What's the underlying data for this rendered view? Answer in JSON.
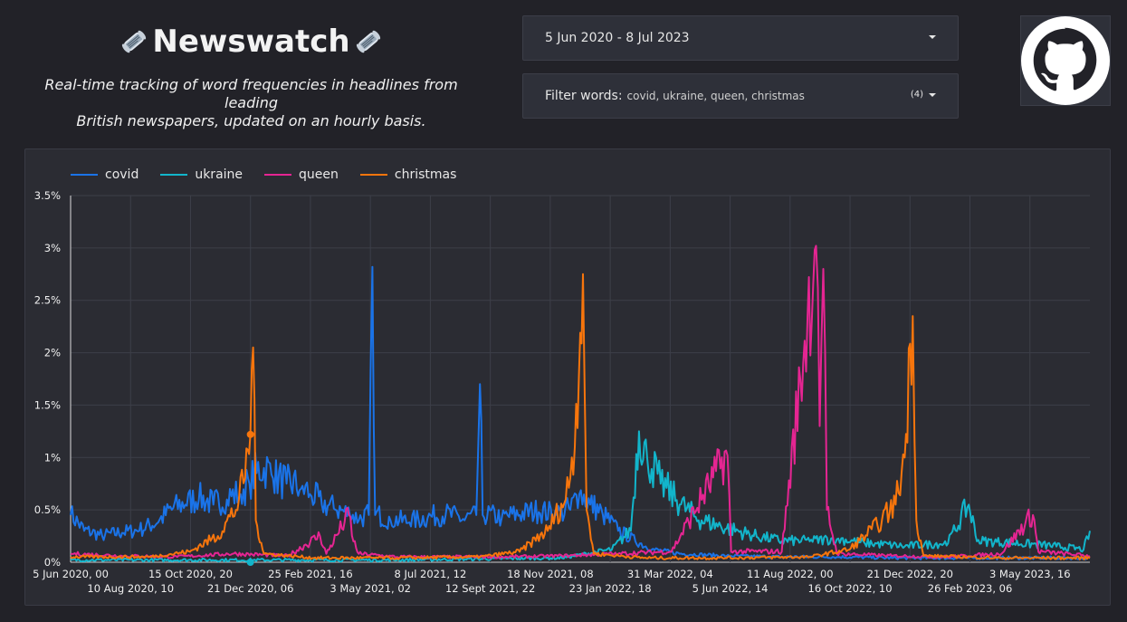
{
  "header": {
    "title": "Newswatch",
    "subtitle_line1": "Real-time tracking of word frequencies in headlines from leading",
    "subtitle_line2": "British newspapers, updated on an hourly basis.",
    "icon": "newspaper-icon"
  },
  "date_range": {
    "value": "5 Jun 2020 - 8 Jul 2023"
  },
  "filter": {
    "label": "Filter words:",
    "values": "covid, ukraine, queen, christmas",
    "count": "(4)"
  },
  "github": {
    "icon": "github-icon"
  },
  "colors": {
    "background": "#222228",
    "panel": "#2b2c33",
    "covid": "#1a73e8",
    "ukraine": "#12b5cb",
    "queen": "#e52592",
    "christmas": "#f7750c"
  },
  "chart_data": {
    "type": "line",
    "title": "",
    "xlabel": "",
    "ylabel": "",
    "ylim": [
      0,
      3.5
    ],
    "y_ticks": [
      "0%",
      "0.5%",
      "1%",
      "1.5%",
      "2%",
      "2.5%",
      "3%",
      "3.5%"
    ],
    "x_range": [
      "2020-06-05",
      "2023-07-08"
    ],
    "x_ticks_row1": [
      "5 Jun 2020, 00",
      "15 Oct 2020, 20",
      "25 Feb 2021, 16",
      "8 Jul 2021, 12",
      "18 Nov 2021, 08",
      "31 Mar 2022, 04",
      "11 Aug 2022, 00",
      "21 Dec 2022, 20",
      "3 May 2023, 16"
    ],
    "x_ticks_row2": [
      "10 Aug 2020, 10",
      "21 Dec 2020, 06",
      "3 May 2021, 02",
      "12 Sept 2021, 22",
      "23 Jan 2022, 18",
      "5 Jun 2022, 14",
      "16 Oct 2022, 10",
      "26 Feb 2023, 06"
    ],
    "grid": true,
    "legend_position": "top-left",
    "series": [
      {
        "name": "covid",
        "color": "#1a73e8",
        "points": [
          [
            "2020-06-05",
            0.45
          ],
          [
            "2020-06-20",
            0.3
          ],
          [
            "2020-07-10",
            0.25
          ],
          [
            "2020-08-01",
            0.28
          ],
          [
            "2020-08-20",
            0.3
          ],
          [
            "2020-09-10",
            0.38
          ],
          [
            "2020-09-25",
            0.5
          ],
          [
            "2020-10-10",
            0.55
          ],
          [
            "2020-10-25",
            0.6
          ],
          [
            "2020-11-10",
            0.55
          ],
          [
            "2020-11-25",
            0.6
          ],
          [
            "2020-12-10",
            0.65
          ],
          [
            "2020-12-20",
            0.75
          ],
          [
            "2020-12-28",
            0.85
          ],
          [
            "2021-01-05",
            0.9
          ],
          [
            "2021-01-15",
            0.8
          ],
          [
            "2021-01-30",
            0.75
          ],
          [
            "2021-02-15",
            0.7
          ],
          [
            "2021-02-25",
            0.65
          ],
          [
            "2021-03-10",
            0.55
          ],
          [
            "2021-03-25",
            0.5
          ],
          [
            "2021-04-10",
            0.45
          ],
          [
            "2021-04-20",
            0.4
          ],
          [
            "2021-05-01",
            0.45
          ],
          [
            "2021-05-05",
            2.82
          ],
          [
            "2021-05-08",
            0.45
          ],
          [
            "2021-05-25",
            0.4
          ],
          [
            "2021-06-15",
            0.38
          ],
          [
            "2021-07-05",
            0.42
          ],
          [
            "2021-07-25",
            0.45
          ],
          [
            "2021-08-15",
            0.4
          ],
          [
            "2021-08-28",
            0.45
          ],
          [
            "2021-09-01",
            1.7
          ],
          [
            "2021-09-04",
            0.45
          ],
          [
            "2021-09-25",
            0.42
          ],
          [
            "2021-10-15",
            0.45
          ],
          [
            "2021-11-05",
            0.48
          ],
          [
            "2021-11-25",
            0.45
          ],
          [
            "2021-12-10",
            0.5
          ],
          [
            "2021-12-20",
            0.65
          ],
          [
            "2022-01-01",
            0.55
          ],
          [
            "2022-01-15",
            0.45
          ],
          [
            "2022-02-01",
            0.3
          ],
          [
            "2022-02-20",
            0.2
          ],
          [
            "2022-03-10",
            0.12
          ],
          [
            "2022-04-10",
            0.08
          ],
          [
            "2022-06-01",
            0.06
          ],
          [
            "2022-08-01",
            0.05
          ],
          [
            "2022-10-01",
            0.05
          ],
          [
            "2022-12-01",
            0.04
          ],
          [
            "2023-02-01",
            0.04
          ],
          [
            "2023-04-01",
            0.04
          ],
          [
            "2023-07-08",
            0.04
          ]
        ]
      },
      {
        "name": "ukraine",
        "color": "#12b5cb",
        "points": [
          [
            "2020-06-05",
            0.02
          ],
          [
            "2021-06-01",
            0.02
          ],
          [
            "2021-12-01",
            0.04
          ],
          [
            "2022-01-25",
            0.12
          ],
          [
            "2022-02-15",
            0.3
          ],
          [
            "2022-02-24",
            1.25
          ],
          [
            "2022-03-05",
            1.0
          ],
          [
            "2022-03-20",
            0.75
          ],
          [
            "2022-04-10",
            0.55
          ],
          [
            "2022-05-01",
            0.4
          ],
          [
            "2022-06-01",
            0.32
          ],
          [
            "2022-07-01",
            0.25
          ],
          [
            "2022-08-01",
            0.2
          ],
          [
            "2022-09-01",
            0.2
          ],
          [
            "2022-10-01",
            0.22
          ],
          [
            "2022-11-01",
            0.18
          ],
          [
            "2022-12-15",
            0.15
          ],
          [
            "2023-02-01",
            0.18
          ],
          [
            "2023-02-24",
            0.55
          ],
          [
            "2023-03-05",
            0.2
          ],
          [
            "2023-04-15",
            0.18
          ],
          [
            "2023-06-01",
            0.15
          ],
          [
            "2023-07-01",
            0.12
          ],
          [
            "2023-07-08",
            0.3
          ]
        ]
      },
      {
        "name": "queen",
        "color": "#e52592",
        "points": [
          [
            "2020-06-05",
            0.08
          ],
          [
            "2020-08-01",
            0.06
          ],
          [
            "2020-10-01",
            0.05
          ],
          [
            "2020-12-01",
            0.08
          ],
          [
            "2021-02-01",
            0.06
          ],
          [
            "2021-03-08",
            0.25
          ],
          [
            "2021-03-15",
            0.08
          ],
          [
            "2021-04-09",
            0.45
          ],
          [
            "2021-04-14",
            0.2
          ],
          [
            "2021-04-20",
            0.08
          ],
          [
            "2021-06-01",
            0.05
          ],
          [
            "2021-08-01",
            0.05
          ],
          [
            "2021-10-01",
            0.05
          ],
          [
            "2021-12-01",
            0.06
          ],
          [
            "2022-02-01",
            0.08
          ],
          [
            "2022-04-01",
            0.1
          ],
          [
            "2022-06-02",
            1.02
          ],
          [
            "2022-06-06",
            0.1
          ],
          [
            "2022-08-01",
            0.1
          ],
          [
            "2022-09-08",
            3.02
          ],
          [
            "2022-09-12",
            1.3
          ],
          [
            "2022-09-16",
            2.8
          ],
          [
            "2022-09-20",
            0.5
          ],
          [
            "2022-10-01",
            0.08
          ],
          [
            "2022-12-01",
            0.06
          ],
          [
            "2023-02-01",
            0.05
          ],
          [
            "2023-04-01",
            0.08
          ],
          [
            "2023-05-06",
            0.45
          ],
          [
            "2023-05-12",
            0.1
          ],
          [
            "2023-07-08",
            0.06
          ]
        ]
      },
      {
        "name": "christmas",
        "color": "#f7750c",
        "points": [
          [
            "2020-06-05",
            0.05
          ],
          [
            "2020-09-01",
            0.05
          ],
          [
            "2020-10-15",
            0.1
          ],
          [
            "2020-11-15",
            0.25
          ],
          [
            "2020-12-05",
            0.5
          ],
          [
            "2020-12-15",
            0.8
          ],
          [
            "2020-12-21",
            1.22
          ],
          [
            "2020-12-24",
            2.05
          ],
          [
            "2020-12-27",
            0.4
          ],
          [
            "2021-01-05",
            0.08
          ],
          [
            "2021-03-01",
            0.04
          ],
          [
            "2021-06-01",
            0.04
          ],
          [
            "2021-09-01",
            0.05
          ],
          [
            "2021-10-15",
            0.1
          ],
          [
            "2021-11-15",
            0.3
          ],
          [
            "2021-12-05",
            0.6
          ],
          [
            "2021-12-15",
            1.1
          ],
          [
            "2021-12-24",
            2.75
          ],
          [
            "2021-12-28",
            0.5
          ],
          [
            "2022-01-05",
            0.08
          ],
          [
            "2022-03-01",
            0.04
          ],
          [
            "2022-06-01",
            0.04
          ],
          [
            "2022-09-01",
            0.05
          ],
          [
            "2022-10-15",
            0.12
          ],
          [
            "2022-11-15",
            0.35
          ],
          [
            "2022-12-05",
            0.55
          ],
          [
            "2022-12-15",
            1.0
          ],
          [
            "2022-12-24",
            2.35
          ],
          [
            "2022-12-28",
            0.4
          ],
          [
            "2023-01-05",
            0.06
          ],
          [
            "2023-04-01",
            0.04
          ],
          [
            "2023-07-08",
            0.04
          ]
        ]
      }
    ],
    "markers": [
      {
        "series": "christmas",
        "x": "2020-12-21",
        "y": 1.22
      },
      {
        "series": "ukraine",
        "x": "2020-12-21",
        "y": 0.0
      }
    ]
  }
}
